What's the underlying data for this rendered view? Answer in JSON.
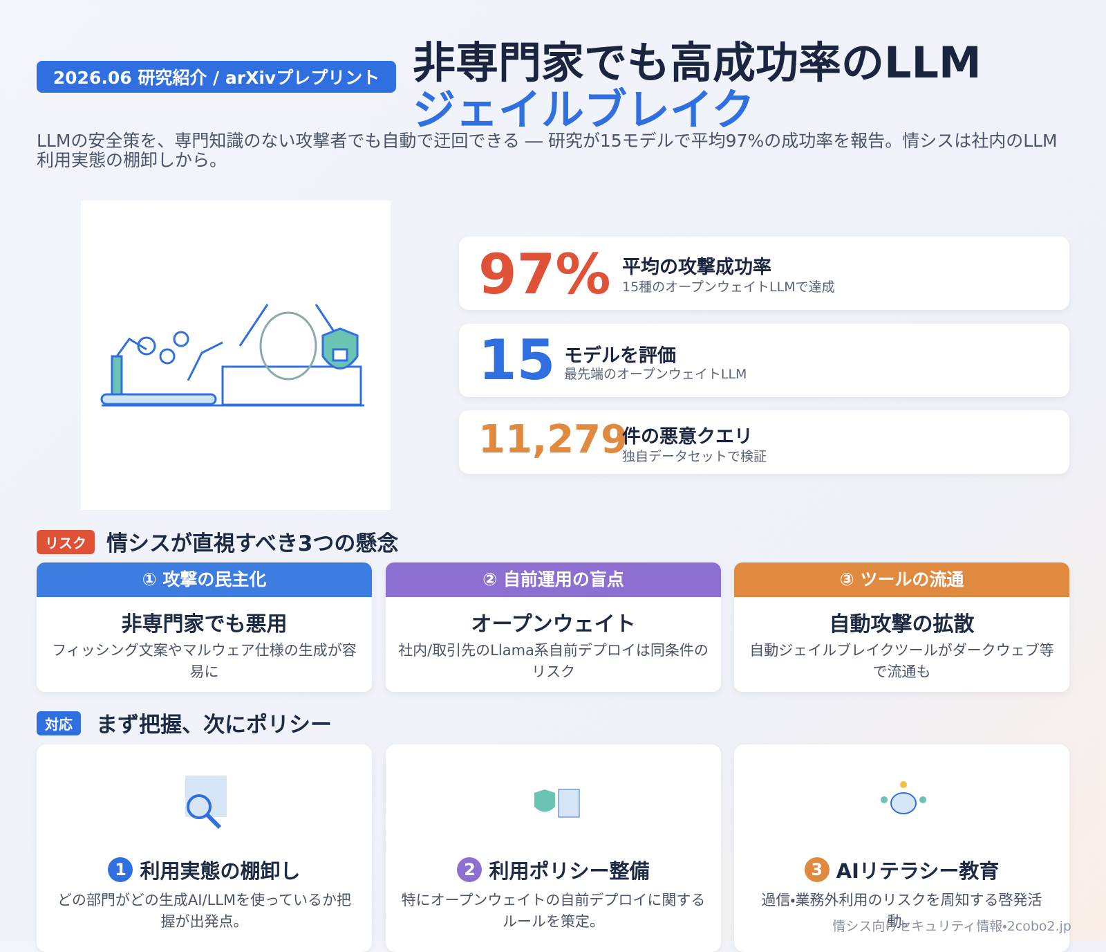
{
  "header": {
    "badge": "2026.06 研究紹介 / arXivプレプリント",
    "title_line1": "非専門家でも高成功率のLLM",
    "title_line2": "ジェイルブレイク",
    "lead": "LLMの安全策を、専門知識のない攻撃者でも自動で迂回できる ― 研究が15モデルで平均97%の成功率を報告。情シスは社内のLLM利用実態の棚卸しから。"
  },
  "stats": [
    {
      "value": "97%",
      "label": "平均の攻撃成功率",
      "sub": "15種のオープンウェイトLLMで達成"
    },
    {
      "value": "15",
      "label": "モデルを評価",
      "sub": "最先端のオープンウェイトLLM"
    },
    {
      "value": "11,279",
      "label": "件の悪意クエリ",
      "sub": "独自データセットで検証"
    }
  ],
  "risk": {
    "tag": "リスク",
    "heading": "情シスが直視すべき3つの懸念",
    "cards": [
      {
        "header": "① 攻撃の民主化",
        "title": "非専門家でも悪用",
        "text": "フィッシング文案やマルウェア仕様の生成が容易に"
      },
      {
        "header": "② 自前運用の盲点",
        "title": "オープンウェイト",
        "text": "社内/取引先のLlama系自前デプロイは同条件のリスク"
      },
      {
        "header": "③ ツールの流通",
        "title": "自動攻撃の拡散",
        "text": "自動ジェイルブレイクツールがダークウェブ等で流通も"
      }
    ]
  },
  "response": {
    "tag": "対応",
    "heading": "まず把握、次にポリシー",
    "cards": [
      {
        "num": "1",
        "title": "利用実態の棚卸し",
        "text": "どの部門がどの生成AI/LLMを使っているか把握が出発点。"
      },
      {
        "num": "2",
        "title": "利用ポリシー整備",
        "text": "特にオープンウェイトの自前デプロイに関するルールを策定。"
      },
      {
        "num": "3",
        "title": "AIリテラシー教育",
        "text": "過信・業務外利用のリスクを周知する啓発活動。"
      }
    ]
  },
  "footer": "情シス向けセキュリティ情報・2cobo2.jp"
}
